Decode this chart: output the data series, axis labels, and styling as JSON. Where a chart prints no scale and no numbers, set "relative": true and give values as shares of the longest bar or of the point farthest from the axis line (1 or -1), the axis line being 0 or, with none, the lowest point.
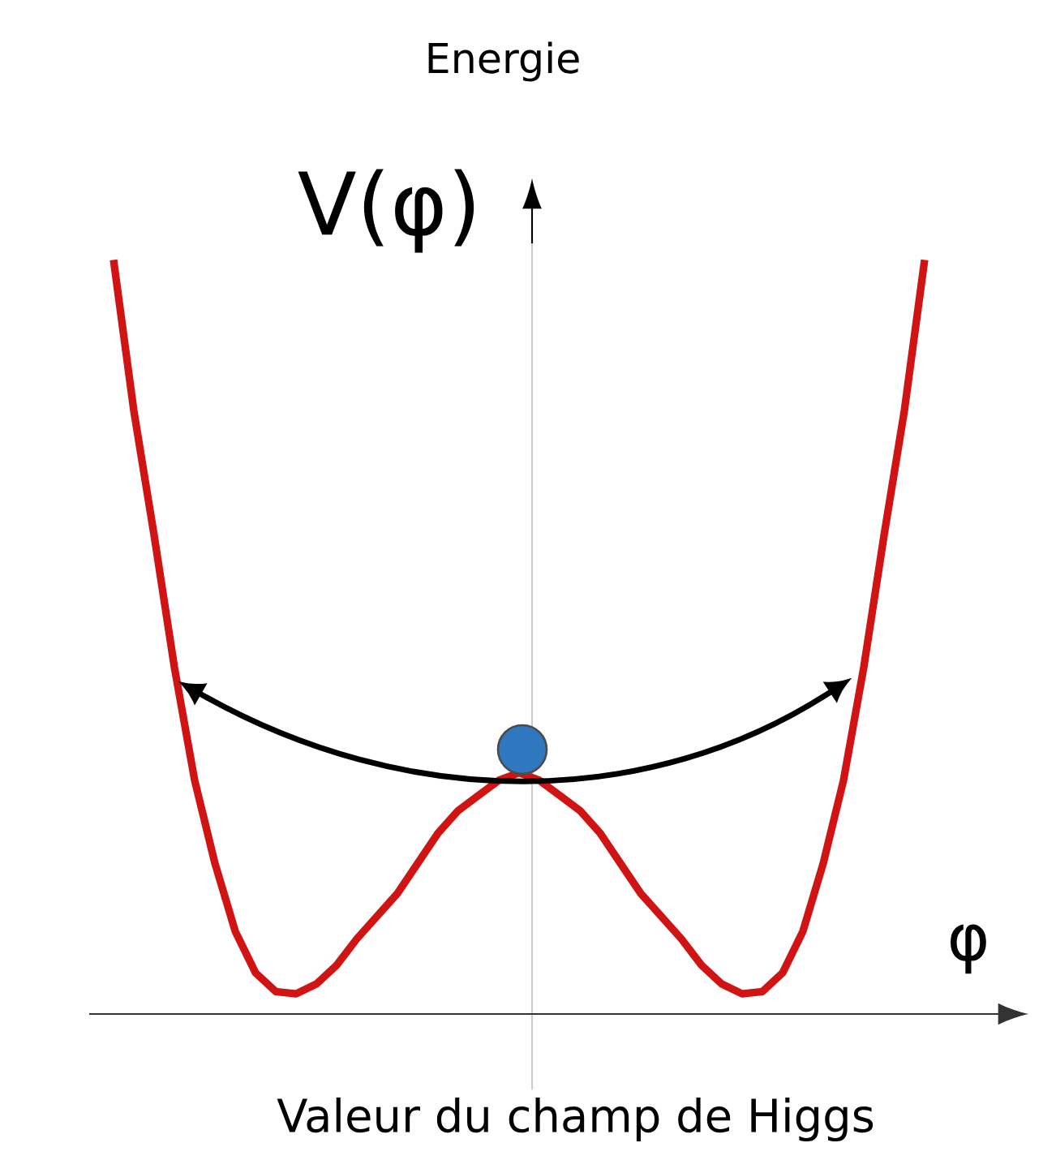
{
  "chart_data": {
    "type": "line",
    "relative": true,
    "ylabel": "V(φ)",
    "xlabel": "φ",
    "annotations": [
      "Energie",
      "Valeur du champ de Higgs"
    ],
    "categories": [
      null,
      null,
      null,
      null,
      null,
      null,
      null,
      null,
      null,
      null,
      null,
      null,
      null,
      null,
      null,
      null,
      null,
      null,
      null,
      null,
      null,
      null,
      null,
      null,
      null,
      null,
      null,
      null,
      null,
      null,
      null,
      null,
      null,
      null,
      null,
      null,
      null,
      null,
      null,
      null,
      null
    ],
    "series": [
      {
        "color": "#d01414",
        "values": [
          1.0,
          0.8,
          0.635,
          0.46,
          0.31,
          0.2,
          0.11,
          0.055,
          0.03,
          0.027,
          0.04,
          0.065,
          0.1,
          0.13,
          0.16,
          0.2,
          0.24,
          0.27,
          0.29,
          0.31,
          0.32,
          0.31,
          0.29,
          0.27,
          0.24,
          0.2,
          0.16,
          0.13,
          0.1,
          0.065,
          0.04,
          0.027,
          0.03,
          0.055,
          0.11,
          0.2,
          0.31,
          0.46,
          0.635,
          0.8,
          1.0
        ]
      }
    ]
  }
}
